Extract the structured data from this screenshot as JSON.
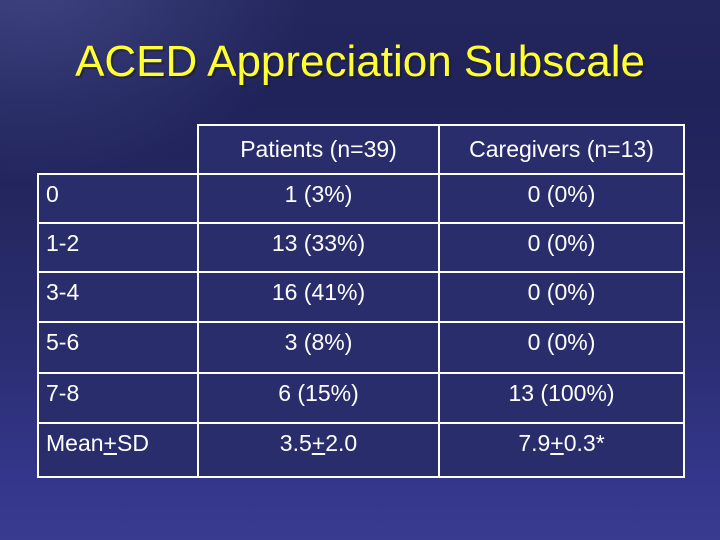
{
  "title": "ACED Appreciation Subscale",
  "table": {
    "headers": {
      "patients": "Patients (n=39)",
      "caregivers": "Caregivers (n=13)"
    },
    "rows": [
      {
        "label": {
          "pre": "0",
          "plus": "",
          "post": ""
        },
        "patients": {
          "pre": "1 (3%)",
          "plus": "",
          "post": ""
        },
        "caregivers": {
          "pre": "0 (0%)",
          "plus": "",
          "post": ""
        }
      },
      {
        "label": {
          "pre": "1-2",
          "plus": "",
          "post": ""
        },
        "patients": {
          "pre": "13 (33%)",
          "plus": "",
          "post": ""
        },
        "caregivers": {
          "pre": "0 (0%)",
          "plus": "",
          "post": ""
        }
      },
      {
        "label": {
          "pre": "3-4",
          "plus": "",
          "post": ""
        },
        "patients": {
          "pre": "16 (41%)",
          "plus": "",
          "post": ""
        },
        "caregivers": {
          "pre": "0 (0%)",
          "plus": "",
          "post": ""
        }
      },
      {
        "label": {
          "pre": "5-6",
          "plus": "",
          "post": ""
        },
        "patients": {
          "pre": "3 (8%)",
          "plus": "",
          "post": ""
        },
        "caregivers": {
          "pre": "0 (0%)",
          "plus": "",
          "post": ""
        }
      },
      {
        "label": {
          "pre": "7-8",
          "plus": "",
          "post": ""
        },
        "patients": {
          "pre": "6 (15%)",
          "plus": "",
          "post": ""
        },
        "caregivers": {
          "pre": "13 (100%)",
          "plus": "",
          "post": ""
        }
      },
      {
        "label": {
          "pre": "Mean",
          "plus": "+",
          "post": "SD"
        },
        "patients": {
          "pre": "3.5",
          "plus": "+",
          "post": "2.0"
        },
        "caregivers": {
          "pre": "7.9",
          "plus": "+",
          "post": "0.3*"
        }
      }
    ]
  },
  "colors": {
    "background_top": "#20235a",
    "background_bottom": "#383b90",
    "cell_fill": "#2a2d6c",
    "border": "#ffffff",
    "title_text": "#ffff33",
    "table_text": "#ffffff"
  }
}
